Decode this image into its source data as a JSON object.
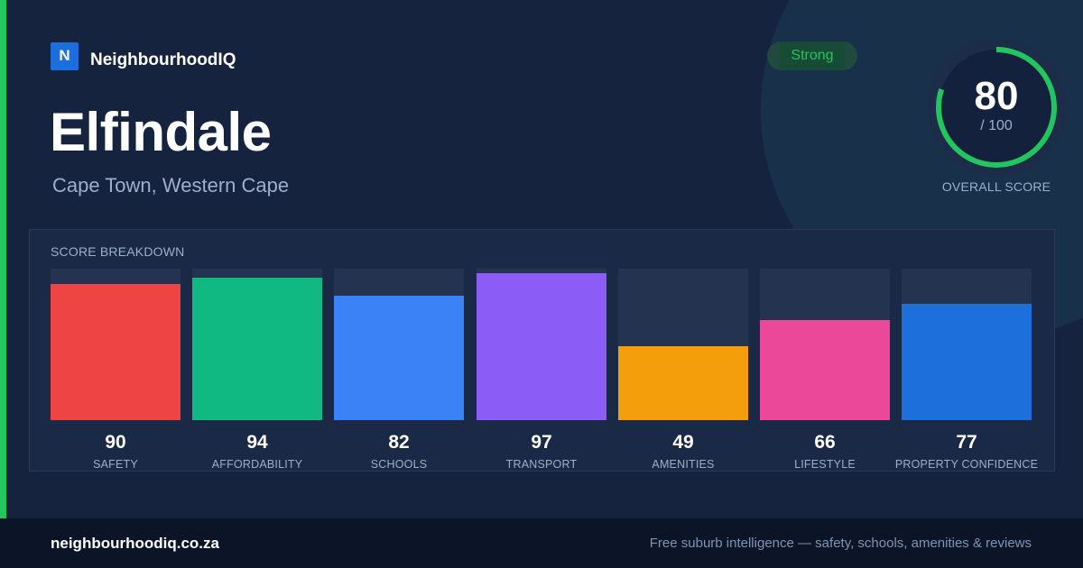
{
  "brand": {
    "logo_letter": "N",
    "name": "NeighbourhoodIQ"
  },
  "suburb": {
    "name": "Elfindale",
    "location": "Cape Town, Western Cape"
  },
  "badge": {
    "label": "Strong",
    "color": "#22c55e"
  },
  "overall": {
    "score": "80",
    "out_of": "/ 100",
    "caption": "OVERALL SCORE",
    "fraction": 0.8,
    "ring_color": "#22c55e"
  },
  "breakdown": {
    "title": "SCORE BREAKDOWN",
    "items": [
      {
        "label": "SAFETY",
        "value": "90",
        "fill": 90,
        "color": "#ef4444"
      },
      {
        "label": "AFFORDABILITY",
        "value": "94",
        "fill": 94,
        "color": "#10b981"
      },
      {
        "label": "SCHOOLS",
        "value": "82",
        "fill": 82,
        "color": "#3b82f6"
      },
      {
        "label": "TRANSPORT",
        "value": "97",
        "fill": 97,
        "color": "#8b5cf6"
      },
      {
        "label": "AMENITIES",
        "value": "49",
        "fill": 49,
        "color": "#f59e0b"
      },
      {
        "label": "LIFESTYLE",
        "value": "66",
        "fill": 66,
        "color": "#ec4899"
      },
      {
        "label": "PROPERTY CONFIDENCE",
        "value": "77",
        "fill": 77,
        "color": "#1d6fdb"
      }
    ]
  },
  "footer": {
    "url": "neighbourhoodiq.co.za",
    "tagline": "Free suburb intelligence — safety, schools, amenities & reviews"
  }
}
